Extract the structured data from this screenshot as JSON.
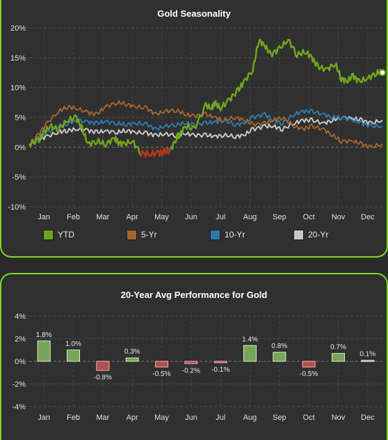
{
  "colors": {
    "accent": "#7fd91f",
    "ytd": "#6fa51d",
    "ytd_negative": "#c0301c",
    "yr5": "#a0652e",
    "yr10": "#2f79a8",
    "yr20": "#c8c8c8",
    "bar_positive": "#8fc96a",
    "bar_negative": "#d95a5a"
  },
  "seasonality": {
    "title": "Gold Seasonality",
    "legend": [
      {
        "label": "YTD",
        "key": "ytd"
      },
      {
        "label": "5-Yr",
        "key": "yr5"
      },
      {
        "label": "10-Yr",
        "key": "yr10"
      },
      {
        "label": "20-Yr",
        "key": "yr20"
      }
    ]
  },
  "performance": {
    "title": "20-Year Avg Performance for Gold"
  },
  "chart_data": [
    {
      "type": "line",
      "title": "Gold Seasonality",
      "x": [
        "Jan",
        "Feb",
        "Mar",
        "Apr",
        "May",
        "Jun",
        "Jul",
        "Aug",
        "Sep",
        "Oct",
        "Nov",
        "Dec"
      ],
      "ylim": [
        -10,
        20
      ],
      "yticks": [
        -10,
        -5,
        0,
        5,
        10,
        15,
        20
      ],
      "ytick_labels": [
        "-10%",
        "-5%",
        "0%",
        "5%",
        "10%",
        "15%",
        "20%"
      ],
      "grid": true,
      "legend_position": "bottom",
      "series": [
        {
          "name": "YTD",
          "x": [
            0,
            0.3,
            0.5,
            0.7,
            1.0,
            1.3,
            1.6,
            1.8,
            2.0,
            2.3,
            2.6,
            2.9,
            3.0,
            3.2,
            3.5,
            3.8,
            4.1,
            4.4,
            4.6,
            4.8,
            5.0,
            5.1,
            5.3,
            5.6,
            6.0,
            6.2,
            6.3,
            6.5,
            6.8,
            7.1,
            7.3,
            7.6,
            7.8,
            8.0,
            8.2,
            8.5,
            8.8,
            9.1,
            9.4,
            9.6,
            9.8,
            10.1,
            10.4,
            10.6,
            10.8,
            11.0,
            11.2,
            11.5,
            11.8,
            12.0
          ],
          "y": [
            0.5,
            1.0,
            2.5,
            3.5,
            3.0,
            4.5,
            5.0,
            3.0,
            0.5,
            1.0,
            0.5,
            1.5,
            0.8,
            0.5,
            1.0,
            -1.0,
            -1.2,
            -1.0,
            -0.8,
            -0.5,
            1.5,
            2.0,
            3.5,
            3.0,
            7.0,
            6.5,
            7.5,
            6.5,
            8.0,
            9.5,
            11.0,
            13.0,
            18.0,
            17.0,
            15.5,
            16.5,
            18.0,
            15.5,
            16.0,
            15.0,
            13.5,
            13.0,
            14.0,
            11.5,
            11.0,
            12.0,
            11.0,
            11.5,
            12.5,
            12.5
          ]
        },
        {
          "name": "5-Yr",
          "x": [
            0,
            0.3,
            0.6,
            1.0,
            1.3,
            1.6,
            2.0,
            2.3,
            2.6,
            3.0,
            3.3,
            3.6,
            4.0,
            4.3,
            4.6,
            5.0,
            5.3,
            5.6,
            6.0,
            6.3,
            6.6,
            7.0,
            7.3,
            7.6,
            8.0,
            8.3,
            8.6,
            9.0,
            9.3,
            9.6,
            10.0,
            10.3,
            10.6,
            11.0,
            11.3,
            11.6,
            12.0
          ],
          "y": [
            0.5,
            2.0,
            4.0,
            6.0,
            6.8,
            6.5,
            5.8,
            5.5,
            6.8,
            7.5,
            7.2,
            6.8,
            6.5,
            5.5,
            6.0,
            6.2,
            5.5,
            5.2,
            5.5,
            5.0,
            4.5,
            5.0,
            4.5,
            3.8,
            4.0,
            4.5,
            5.0,
            3.5,
            3.0,
            3.5,
            3.0,
            2.0,
            1.0,
            1.0,
            0.5,
            0.0,
            0.5
          ]
        },
        {
          "name": "10-Yr",
          "x": [
            0,
            0.3,
            0.6,
            1.0,
            1.3,
            1.6,
            2.0,
            2.3,
            2.6,
            3.0,
            3.3,
            3.6,
            4.0,
            4.3,
            4.6,
            5.0,
            5.3,
            5.6,
            6.0,
            6.3,
            6.6,
            7.0,
            7.3,
            7.6,
            8.0,
            8.3,
            8.6,
            9.0,
            9.3,
            9.6,
            10.0,
            10.3,
            10.6,
            11.0,
            11.3,
            11.6,
            12.0
          ],
          "y": [
            0.5,
            1.5,
            2.5,
            3.5,
            4.0,
            4.5,
            4.2,
            4.0,
            4.3,
            4.0,
            3.8,
            4.0,
            3.8,
            3.0,
            3.5,
            3.8,
            4.0,
            3.8,
            4.0,
            4.2,
            4.5,
            3.8,
            4.0,
            5.0,
            5.5,
            4.5,
            4.0,
            5.5,
            6.0,
            6.0,
            5.5,
            5.0,
            5.0,
            4.5,
            4.0,
            3.5,
            3.5
          ]
        },
        {
          "name": "20-Yr",
          "x": [
            0,
            0.3,
            0.6,
            1.0,
            1.3,
            1.6,
            2.0,
            2.3,
            2.6,
            3.0,
            3.3,
            3.6,
            4.0,
            4.3,
            4.6,
            5.0,
            5.3,
            5.6,
            6.0,
            6.3,
            6.6,
            7.0,
            7.3,
            7.6,
            8.0,
            8.3,
            8.6,
            9.0,
            9.3,
            9.6,
            10.0,
            10.3,
            10.6,
            11.0,
            11.3,
            11.6,
            12.0
          ],
          "y": [
            0.5,
            1.2,
            1.8,
            2.5,
            2.8,
            3.0,
            2.8,
            2.5,
            2.7,
            2.5,
            2.8,
            2.5,
            2.3,
            2.0,
            2.2,
            2.0,
            2.3,
            2.0,
            2.0,
            1.8,
            2.0,
            1.8,
            2.0,
            3.0,
            3.5,
            3.5,
            3.0,
            4.0,
            4.5,
            4.5,
            4.0,
            4.5,
            5.0,
            4.8,
            4.5,
            4.0,
            4.5
          ]
        }
      ]
    },
    {
      "type": "bar",
      "title": "20-Year Avg Performance for Gold",
      "categories": [
        "Jan",
        "Feb",
        "Mar",
        "Apr",
        "May",
        "Jun",
        "Jul",
        "Aug",
        "Sep",
        "Oct",
        "Nov",
        "Dec"
      ],
      "values": [
        1.8,
        1.0,
        -0.8,
        0.3,
        -0.5,
        -0.2,
        -0.1,
        1.4,
        0.8,
        -0.5,
        0.7,
        0.1
      ],
      "labels": [
        "1.8%",
        "1.0%",
        "-0.8%",
        "0.3%",
        "-0.5%",
        "-0.2%",
        "-0.1%",
        "1.4%",
        "0.8%",
        "-0.5%",
        "0.7%",
        "0.1%"
      ],
      "ylim": [
        -4,
        4
      ],
      "yticks": [
        -4,
        -2,
        0,
        2,
        4
      ],
      "ytick_labels": [
        "-4%",
        "-2%",
        "0%",
        "2%",
        "4%"
      ],
      "grid": true
    }
  ]
}
